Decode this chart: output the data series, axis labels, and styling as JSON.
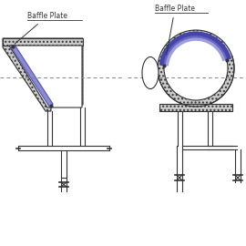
{
  "bg_color": "#ffffff",
  "line_color": "#333333",
  "hatch_color": "#888888",
  "baffle_fill": "#7777cc",
  "baffle_edge": "#4444aa",
  "dashed_color": "#888888",
  "title1": "Baffle Plate",
  "title2": "Baffle Plate",
  "fig_width": 2.7,
  "fig_height": 2.7,
  "dpi": 100
}
